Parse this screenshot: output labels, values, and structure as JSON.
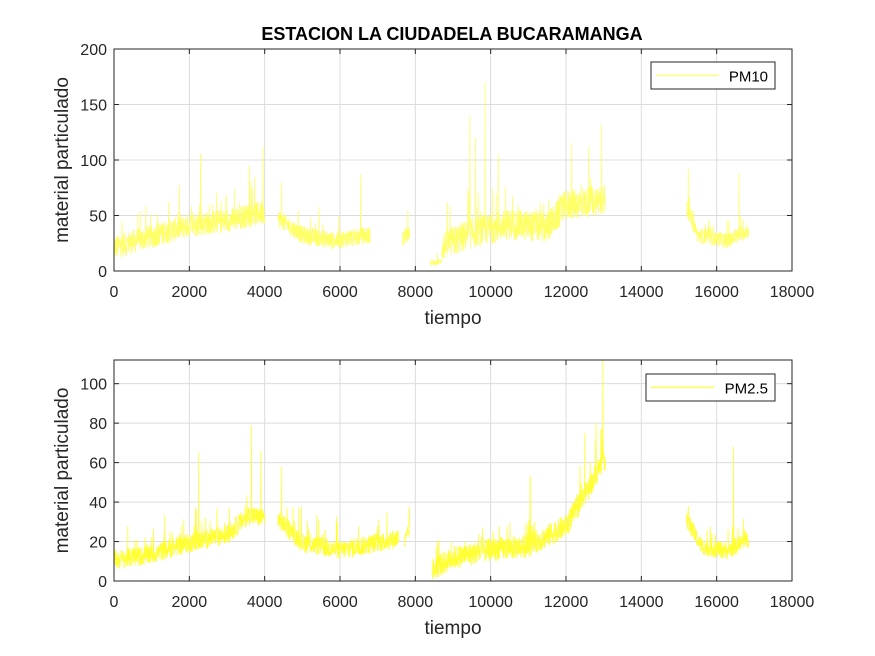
{
  "chart_data": [
    {
      "type": "line",
      "title": "ESTACION LA CIUDADELA BUCARAMANGA",
      "xlabel": "tiempo",
      "ylabel": "material particulado",
      "xlim": [
        0,
        18000
      ],
      "ylim": [
        0,
        200
      ],
      "xticks": [
        0,
        2000,
        4000,
        6000,
        8000,
        10000,
        12000,
        14000,
        16000,
        18000
      ],
      "yticks": [
        0,
        50,
        100,
        150,
        200
      ],
      "grid": true,
      "legend_position": "top-right",
      "series": [
        {
          "name": "PM10",
          "color": "#ffff66",
          "segments": [
            {
              "x_start": 0,
              "x_end": 4000,
              "baseline": [
                [
                  0,
                  18
                ],
                [
                  1000,
                  28
                ],
                [
                  2000,
                  38
                ],
                [
                  3000,
                  42
                ],
                [
                  4000,
                  50
                ]
              ],
              "spread": 22,
              "spikes": [
                [
                  2300,
                  105
                ],
                [
                  3950,
                  112
                ],
                [
                  3600,
                  95
                ]
              ]
            },
            {
              "x_start": 4350,
              "x_end": 6800,
              "baseline": [
                [
                  4350,
                  45
                ],
                [
                  5000,
                  30
                ],
                [
                  5800,
                  25
                ],
                [
                  6800,
                  30
                ]
              ],
              "spread": 16,
              "spikes": [
                [
                  4450,
                  80
                ],
                [
                  6550,
                  87
                ]
              ]
            },
            {
              "x_start": 7650,
              "x_end": 7850,
              "baseline": [
                [
                  7650,
                  25
                ],
                [
                  7850,
                  35
                ]
              ],
              "spread": 16,
              "spikes": [
                [
                  7800,
                  55
                ]
              ]
            },
            {
              "x_start": 8400,
              "x_end": 8700,
              "baseline": [
                [
                  8400,
                  6
                ],
                [
                  8700,
                  8
                ]
              ],
              "spread": 5,
              "spikes": []
            },
            {
              "x_start": 8700,
              "x_end": 13050,
              "baseline": [
                [
                  8700,
                  18
                ],
                [
                  9500,
                  30
                ],
                [
                  10500,
                  38
                ],
                [
                  11500,
                  35
                ],
                [
                  12000,
                  55
                ],
                [
                  13000,
                  60
                ]
              ],
              "spread": 28,
              "spikes": [
                [
                  9450,
                  140
                ],
                [
                  9850,
                  170
                ],
                [
                  9600,
                  120
                ],
                [
                  10200,
                  105
                ],
                [
                  12150,
                  115
                ],
                [
                  12600,
                  112
                ],
                [
                  12950,
                  132
                ]
              ]
            },
            {
              "x_start": 15200,
              "x_end": 16850,
              "baseline": [
                [
                  15200,
                  55
                ],
                [
                  15500,
                  30
                ],
                [
                  16300,
                  25
                ],
                [
                  16850,
                  35
                ]
              ],
              "spread": 14,
              "spikes": [
                [
                  15250,
                  92
                ],
                [
                  16600,
                  88
                ]
              ]
            }
          ]
        }
      ]
    },
    {
      "type": "line",
      "title": "",
      "xlabel": "tiempo",
      "ylabel": "material particulado",
      "xlim": [
        0,
        18000
      ],
      "ylim": [
        0,
        112
      ],
      "xticks": [
        0,
        2000,
        4000,
        6000,
        8000,
        10000,
        12000,
        14000,
        16000,
        18000
      ],
      "yticks": [
        0,
        20,
        40,
        60,
        80,
        100
      ],
      "grid": true,
      "legend_position": "top-right",
      "series": [
        {
          "name": "PM2.5",
          "color": "#ffff33",
          "segments": [
            {
              "x_start": 0,
              "x_end": 4000,
              "baseline": [
                [
                  0,
                  9
                ],
                [
                  1000,
                  12
                ],
                [
                  2000,
                  18
                ],
                [
                  3000,
                  22
                ],
                [
                  3600,
                  32
                ],
                [
                  4000,
                  30
                ]
              ],
              "spread": 10,
              "spikes": [
                [
                  2250,
                  65
                ],
                [
                  3650,
                  79
                ],
                [
                  3900,
                  66
                ]
              ]
            },
            {
              "x_start": 4350,
              "x_end": 7550,
              "baseline": [
                [
                  4350,
                  30
                ],
                [
                  5000,
                  18
                ],
                [
                  6000,
                  14
                ],
                [
                  7000,
                  18
                ],
                [
                  7550,
                  20
                ]
              ],
              "spread": 10,
              "spikes": [
                [
                  4450,
                  58
                ]
              ]
            },
            {
              "x_start": 7700,
              "x_end": 7850,
              "baseline": [
                [
                  7700,
                  18
                ],
                [
                  7850,
                  25
                ]
              ],
              "spread": 8,
              "spikes": []
            },
            {
              "x_start": 8450,
              "x_end": 13050,
              "baseline": [
                [
                  8450,
                  4
                ],
                [
                  9000,
                  10
                ],
                [
                  10000,
                  14
                ],
                [
                  11000,
                  16
                ],
                [
                  12000,
                  26
                ],
                [
                  12600,
                  45
                ],
                [
                  13000,
                  60
                ]
              ],
              "spread": 12,
              "spikes": [
                [
                  11050,
                  53
                ],
                [
                  12800,
                  80
                ],
                [
                  12980,
                  112
                ],
                [
                  12500,
                  75
                ]
              ]
            },
            {
              "x_start": 15200,
              "x_end": 16850,
              "baseline": [
                [
                  15200,
                  30
                ],
                [
                  15600,
                  16
                ],
                [
                  16300,
                  14
                ],
                [
                  16850,
                  20
                ]
              ],
              "spread": 9,
              "spikes": [
                [
                  15250,
                  38
                ],
                [
                  16450,
                  68
                ]
              ]
            }
          ]
        }
      ]
    }
  ]
}
